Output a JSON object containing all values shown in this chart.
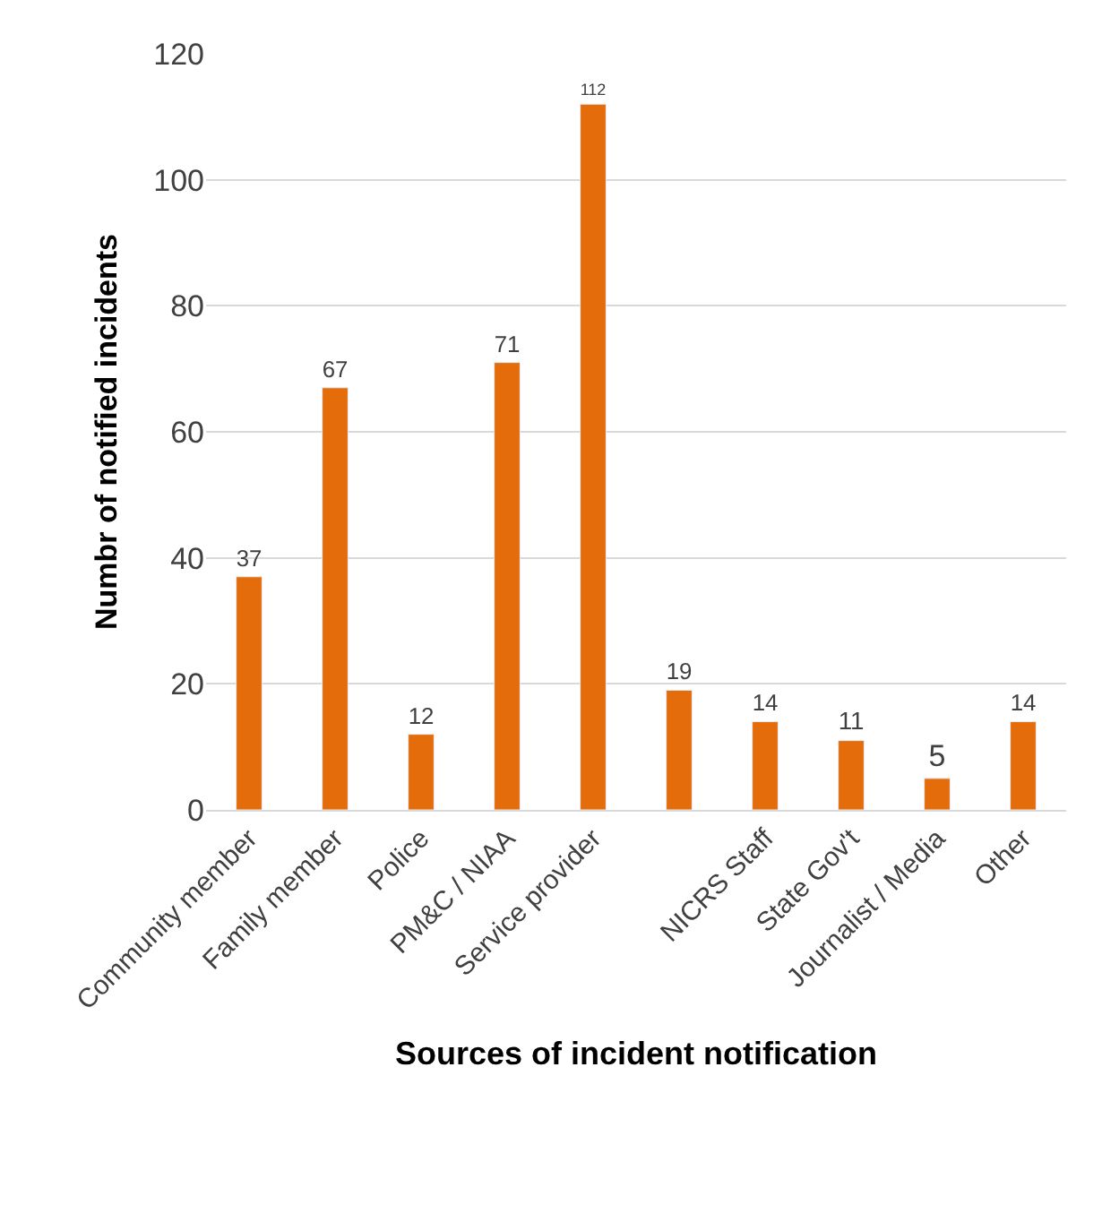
{
  "chart_data": {
    "type": "bar",
    "xlabel": "Sources of incident notification",
    "ylabel": "Numbr of notified incidents",
    "categories": [
      "Community member",
      "Family member",
      "Police",
      "PM&C / NIAA",
      "Service provider",
      null,
      "NICRS Staff",
      "State Gov't",
      "Journalist / Media",
      "Other"
    ],
    "values": [
      37,
      67,
      12,
      71,
      112,
      19,
      14,
      11,
      5,
      14
    ],
    "color": "#e46c0a",
    "ylim": [
      0,
      120
    ],
    "yticks": [
      0,
      20,
      40,
      60,
      80,
      100,
      120
    ],
    "grid": "y",
    "data_labels": true,
    "legend": false
  }
}
